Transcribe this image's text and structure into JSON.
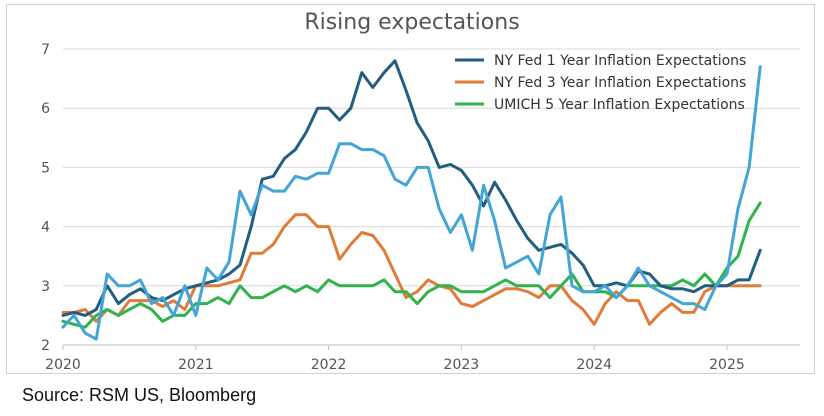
{
  "chart_data": {
    "type": "line",
    "title": "Rising expectations",
    "xlabel": "",
    "ylabel": "",
    "ylim": [
      2,
      7
    ],
    "yticks": [
      "2",
      "3",
      "4",
      "5",
      "6",
      "7"
    ],
    "xticks": [
      "2020",
      "2021",
      "2022",
      "2023",
      "2024",
      "2025"
    ],
    "xlim": [
      2020.0,
      2025.55
    ],
    "grid": true,
    "legend_position": "top-right",
    "series": [
      {
        "name": "NY Fed 1 Year Inflation Expectations",
        "color": "#235e80",
        "x": [
          2020.0,
          2020.083,
          2020.167,
          2020.25,
          2020.333,
          2020.417,
          2020.5,
          2020.583,
          2020.667,
          2020.75,
          2020.833,
          2020.917,
          2021.0,
          2021.083,
          2021.167,
          2021.25,
          2021.333,
          2021.417,
          2021.5,
          2021.583,
          2021.667,
          2021.75,
          2021.833,
          2021.917,
          2022.0,
          2022.083,
          2022.167,
          2022.25,
          2022.333,
          2022.417,
          2022.5,
          2022.583,
          2022.667,
          2022.75,
          2022.833,
          2022.917,
          2023.0,
          2023.083,
          2023.167,
          2023.25,
          2023.333,
          2023.417,
          2023.5,
          2023.583,
          2023.667,
          2023.75,
          2023.833,
          2023.917,
          2024.0,
          2024.083,
          2024.167,
          2024.25,
          2024.333,
          2024.417,
          2024.5,
          2024.583,
          2024.667,
          2024.75,
          2024.833,
          2024.917,
          2025.0,
          2025.083,
          2025.167,
          2025.25
        ],
        "values": [
          2.5,
          2.55,
          2.5,
          2.6,
          3.0,
          2.7,
          2.85,
          2.95,
          2.8,
          2.75,
          2.85,
          2.95,
          3.0,
          3.05,
          3.1,
          3.2,
          3.35,
          4.0,
          4.8,
          4.85,
          5.15,
          5.3,
          5.6,
          6.0,
          6.0,
          5.8,
          6.0,
          6.6,
          6.35,
          6.6,
          6.8,
          6.3,
          5.75,
          5.45,
          5.0,
          5.05,
          4.95,
          4.7,
          4.35,
          4.75,
          4.45,
          4.1,
          3.8,
          3.6,
          3.65,
          3.7,
          3.55,
          3.35,
          3.0,
          3.0,
          3.05,
          3.0,
          3.25,
          3.2,
          3.0,
          2.95,
          2.95,
          2.9,
          3.0,
          3.0,
          3.0,
          3.1,
          3.1,
          3.6
        ]
      },
      {
        "name": "NY Fed 3 Year Inflation Expectations",
        "color": "#e07b39",
        "x": [
          2020.0,
          2020.083,
          2020.167,
          2020.25,
          2020.333,
          2020.417,
          2020.5,
          2020.583,
          2020.667,
          2020.75,
          2020.833,
          2020.917,
          2021.0,
          2021.083,
          2021.167,
          2021.25,
          2021.333,
          2021.417,
          2021.5,
          2021.583,
          2021.667,
          2021.75,
          2021.833,
          2021.917,
          2022.0,
          2022.083,
          2022.167,
          2022.25,
          2022.333,
          2022.417,
          2022.5,
          2022.583,
          2022.667,
          2022.75,
          2022.833,
          2022.917,
          2023.0,
          2023.083,
          2023.167,
          2023.25,
          2023.333,
          2023.417,
          2023.5,
          2023.583,
          2023.667,
          2023.75,
          2023.833,
          2023.917,
          2024.0,
          2024.083,
          2024.167,
          2024.25,
          2024.333,
          2024.417,
          2024.5,
          2024.583,
          2024.667,
          2024.75,
          2024.833,
          2024.917,
          2025.0,
          2025.083,
          2025.167,
          2025.25
        ],
        "values": [
          2.55,
          2.55,
          2.6,
          2.4,
          2.6,
          2.5,
          2.75,
          2.75,
          2.75,
          2.65,
          2.75,
          2.6,
          3.0,
          3.0,
          3.0,
          3.05,
          3.1,
          3.55,
          3.55,
          3.7,
          4.0,
          4.2,
          4.2,
          4.0,
          4.0,
          3.45,
          3.7,
          3.9,
          3.85,
          3.6,
          3.2,
          2.8,
          2.9,
          3.1,
          3.0,
          2.95,
          2.7,
          2.65,
          2.75,
          2.85,
          2.95,
          2.95,
          2.9,
          2.8,
          3.0,
          3.0,
          2.75,
          2.6,
          2.35,
          2.7,
          2.9,
          2.75,
          2.75,
          2.35,
          2.55,
          2.7,
          2.55,
          2.55,
          2.9,
          3.0,
          3.0,
          3.0,
          3.0,
          3.0
        ]
      },
      {
        "name": "UMICH 5 Year Inflation Expectations",
        "color": "#2fb34a",
        "x": [
          2020.0,
          2020.083,
          2020.167,
          2020.25,
          2020.333,
          2020.417,
          2020.5,
          2020.583,
          2020.667,
          2020.75,
          2020.833,
          2020.917,
          2021.0,
          2021.083,
          2021.167,
          2021.25,
          2021.333,
          2021.417,
          2021.5,
          2021.583,
          2021.667,
          2021.75,
          2021.833,
          2021.917,
          2022.0,
          2022.083,
          2022.167,
          2022.25,
          2022.333,
          2022.417,
          2022.5,
          2022.583,
          2022.667,
          2022.75,
          2022.833,
          2022.917,
          2023.0,
          2023.083,
          2023.167,
          2023.25,
          2023.333,
          2023.417,
          2023.5,
          2023.583,
          2023.667,
          2023.75,
          2023.833,
          2023.917,
          2024.0,
          2024.083,
          2024.167,
          2024.25,
          2024.333,
          2024.417,
          2024.5,
          2024.583,
          2024.667,
          2024.75,
          2024.833,
          2024.917,
          2025.0,
          2025.083,
          2025.167,
          2025.25
        ],
        "values": [
          2.4,
          2.35,
          2.3,
          2.5,
          2.6,
          2.5,
          2.6,
          2.7,
          2.6,
          2.4,
          2.5,
          2.5,
          2.7,
          2.7,
          2.8,
          2.7,
          3.0,
          2.8,
          2.8,
          2.9,
          3.0,
          2.9,
          3.0,
          2.9,
          3.1,
          3.0,
          3.0,
          3.0,
          3.0,
          3.1,
          2.9,
          2.9,
          2.7,
          2.9,
          3.0,
          3.0,
          2.9,
          2.9,
          2.9,
          3.0,
          3.1,
          3.0,
          3.0,
          3.0,
          2.8,
          3.0,
          3.2,
          2.9,
          2.9,
          2.9,
          2.8,
          3.0,
          3.0,
          3.0,
          3.0,
          3.0,
          3.1,
          3.0,
          3.2,
          3.0,
          3.3,
          3.5,
          4.1,
          4.4
        ]
      },
      {
        "name": "",
        "color": "#42a5d5",
        "x": [
          2020.0,
          2020.083,
          2020.167,
          2020.25,
          2020.333,
          2020.417,
          2020.5,
          2020.583,
          2020.667,
          2020.75,
          2020.833,
          2020.917,
          2021.0,
          2021.083,
          2021.167,
          2021.25,
          2021.333,
          2021.417,
          2021.5,
          2021.583,
          2021.667,
          2021.75,
          2021.833,
          2021.917,
          2022.0,
          2022.083,
          2022.167,
          2022.25,
          2022.333,
          2022.417,
          2022.5,
          2022.583,
          2022.667,
          2022.75,
          2022.833,
          2022.917,
          2023.0,
          2023.083,
          2023.167,
          2023.25,
          2023.333,
          2023.417,
          2023.5,
          2023.583,
          2023.667,
          2023.75,
          2023.833,
          2023.917,
          2024.0,
          2024.083,
          2024.167,
          2024.25,
          2024.333,
          2024.417,
          2024.5,
          2024.583,
          2024.667,
          2024.75,
          2024.833,
          2024.917,
          2025.0,
          2025.083,
          2025.167,
          2025.25
        ],
        "values": [
          2.3,
          2.5,
          2.2,
          2.1,
          3.2,
          3.0,
          3.0,
          3.1,
          2.7,
          2.8,
          2.5,
          3.0,
          2.5,
          3.3,
          3.1,
          3.4,
          4.6,
          4.2,
          4.7,
          4.6,
          4.6,
          4.85,
          4.8,
          4.9,
          4.9,
          5.4,
          5.4,
          5.3,
          5.3,
          5.2,
          4.8,
          4.7,
          5.0,
          5.0,
          4.3,
          3.9,
          4.2,
          3.6,
          4.7,
          4.1,
          3.3,
          3.4,
          3.5,
          3.2,
          4.2,
          4.5,
          3.0,
          2.9,
          2.9,
          3.0,
          2.8,
          3.0,
          3.3,
          3.0,
          2.9,
          2.8,
          2.7,
          2.7,
          2.6,
          3.0,
          3.2,
          4.3,
          5.0,
          6.7
        ]
      }
    ]
  },
  "source": "Source: RSM US, Bloomberg"
}
